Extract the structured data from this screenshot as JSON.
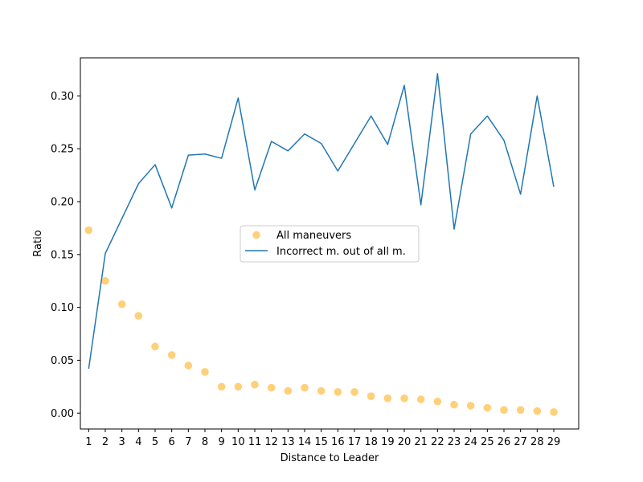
{
  "chart_data": {
    "type": "line",
    "xlabel": "Distance to Leader",
    "ylabel": "Ratio",
    "x": [
      1,
      2,
      3,
      4,
      5,
      6,
      7,
      8,
      9,
      10,
      11,
      12,
      13,
      14,
      15,
      16,
      17,
      18,
      19,
      20,
      21,
      22,
      23,
      24,
      25,
      26,
      27,
      28,
      29
    ],
    "xlim": [
      0.5,
      30.5
    ],
    "ylim": [
      -0.015,
      0.336
    ],
    "yticks": [
      0.0,
      0.05,
      0.1,
      0.15,
      0.2,
      0.25,
      0.3
    ],
    "ytick_labels": [
      "0.00",
      "0.05",
      "0.10",
      "0.15",
      "0.20",
      "0.25",
      "0.30"
    ],
    "grid": false,
    "legend_position": "center",
    "series": [
      {
        "name": "All maneuvers",
        "kind": "scatter",
        "color": "#ffc04d",
        "values": [
          0.173,
          0.125,
          0.103,
          0.092,
          0.063,
          0.055,
          0.045,
          0.039,
          0.025,
          0.025,
          0.027,
          0.024,
          0.021,
          0.024,
          0.021,
          0.02,
          0.02,
          0.016,
          0.014,
          0.014,
          0.013,
          0.011,
          0.008,
          0.007,
          0.005,
          0.003,
          0.003,
          0.002,
          0.001
        ]
      },
      {
        "name": "Incorrect m. out of all m.",
        "kind": "line",
        "color": "#1f77b4",
        "values": [
          0.042,
          0.151,
          0.184,
          0.217,
          0.235,
          0.194,
          0.244,
          0.245,
          0.241,
          0.298,
          0.211,
          0.257,
          0.248,
          0.264,
          0.255,
          0.229,
          0.255,
          0.281,
          0.254,
          0.31,
          0.197,
          0.321,
          0.174,
          0.264,
          0.281,
          0.258,
          0.207,
          0.3,
          0.214
        ]
      }
    ]
  }
}
